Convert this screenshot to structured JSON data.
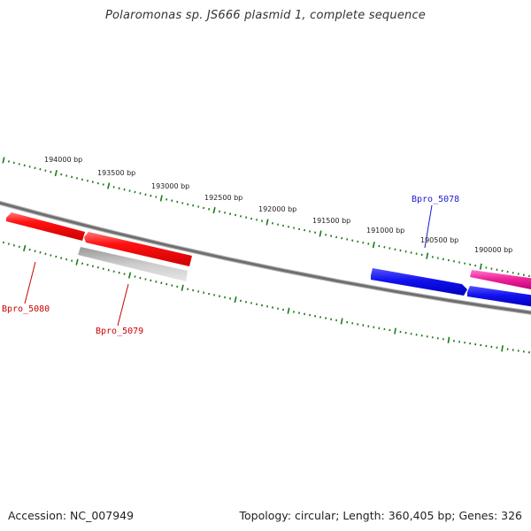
{
  "title": "Polaromonas sp. JS666 plasmid 1, complete sequence",
  "footer": {
    "accession": "Accession: NC_007949",
    "summary": "Topology: circular; Length: 360,405 bp; Genes: 326"
  },
  "ruler": {
    "color": "#1a7a1a",
    "ticks": [
      {
        "bp": 194000,
        "label": "194000 bp"
      },
      {
        "bp": 193500,
        "label": "193500 bp"
      },
      {
        "bp": 193000,
        "label": "193000 bp"
      },
      {
        "bp": 192500,
        "label": "192500 bp"
      },
      {
        "bp": 192000,
        "label": "192000 bp"
      },
      {
        "bp": 191500,
        "label": "191500 bp"
      },
      {
        "bp": 191000,
        "label": "191000 bp"
      },
      {
        "bp": 190500,
        "label": "190500 bp"
      },
      {
        "bp": 190000,
        "label": "190000 bp"
      }
    ]
  },
  "genes": [
    {
      "id": "gene-red-left",
      "strand": "forward-track",
      "color": "#ee1111",
      "label": "Bpro_5080",
      "label_color": "#cc0000"
    },
    {
      "id": "gene-red-right",
      "strand": "forward-track",
      "color": "#ee1111",
      "label": "",
      "label_color": ""
    },
    {
      "id": "gene-grey",
      "strand": "reverse-track",
      "color": "#bbbbbb",
      "label": "Bpro_5079",
      "label_color": "#cc0000"
    },
    {
      "id": "gene-blue-left",
      "strand": "forward-track",
      "color": "#1111ee",
      "label": "Bpro_5078",
      "label_color": "#1a1acc"
    },
    {
      "id": "gene-pink",
      "strand": "forward-track",
      "color": "#ee2299",
      "label": "",
      "label_color": ""
    },
    {
      "id": "gene-blue-right",
      "strand": "forward-track",
      "color": "#1111ee",
      "label": "",
      "label_color": ""
    }
  ],
  "backbone_color": "#7a7a7a"
}
